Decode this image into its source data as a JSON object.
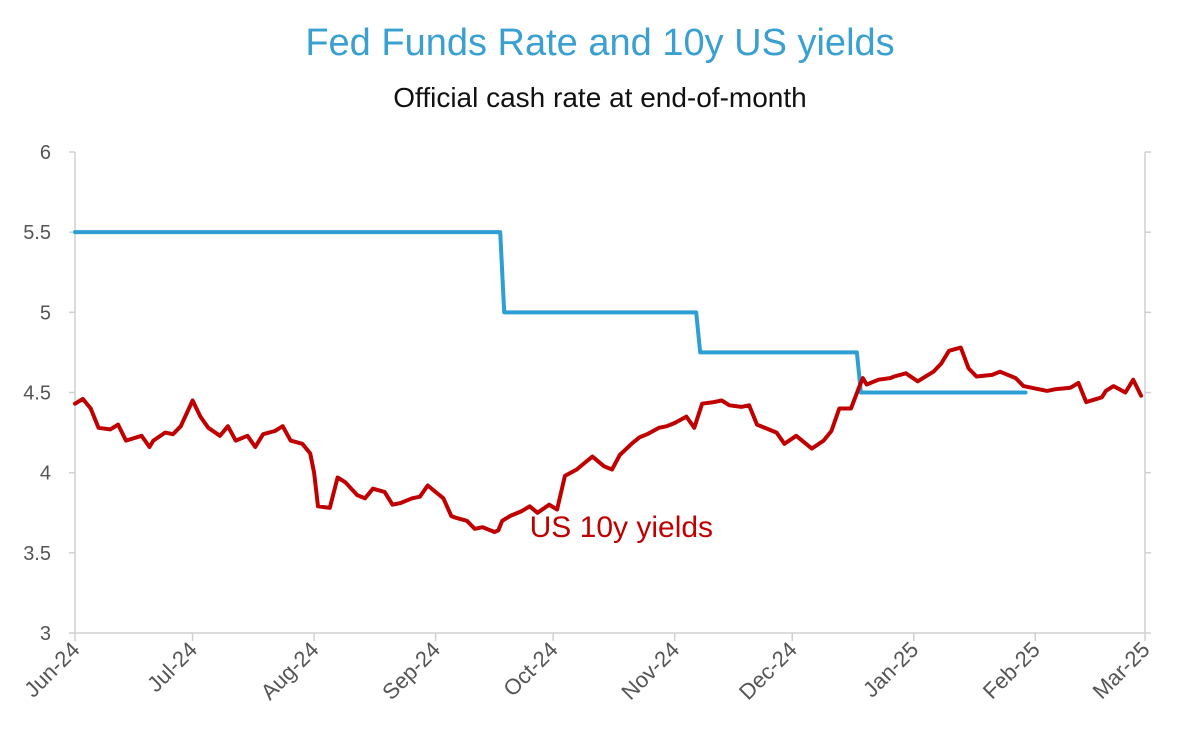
{
  "chart_data": {
    "type": "line",
    "title": "Fed Funds Rate and 10y US yields",
    "subtitle": "Official cash rate at end-of-month",
    "xlabel": "",
    "ylabel": "",
    "x_ticks": [
      "Jun-24",
      "Jul-24",
      "Aug-24",
      "Sep-24",
      "Oct-24",
      "Nov-24",
      "Dec-24",
      "Jan-25",
      "Feb-25",
      "Mar-25"
    ],
    "y_ticks": [
      "3",
      "3.5",
      "4",
      "4.5",
      "5",
      "5.5",
      "6"
    ],
    "xlim": [
      "2024-06-01",
      "2025-03-01"
    ],
    "ylim": [
      3,
      6
    ],
    "grid": false,
    "legend": "none",
    "series": [
      {
        "key": "fed",
        "color": "#2e9fd4",
        "step": true,
        "x": [
          "2024-06-01",
          "2024-09-18",
          "2024-11-07",
          "2024-12-18",
          "2025-01-29"
        ],
        "y": [
          5.5,
          5.0,
          4.75,
          4.5,
          4.5
        ]
      },
      {
        "key": "us10y",
        "color": "#c00000",
        "x": [
          "2024-06-01",
          "2024-06-03",
          "2024-06-05",
          "2024-06-07",
          "2024-06-10",
          "2024-06-12",
          "2024-06-14",
          "2024-06-18",
          "2024-06-20",
          "2024-06-21",
          "2024-06-24",
          "2024-06-26",
          "2024-06-28",
          "2024-07-01",
          "2024-07-03",
          "2024-07-05",
          "2024-07-08",
          "2024-07-10",
          "2024-07-12",
          "2024-07-15",
          "2024-07-17",
          "2024-07-19",
          "2024-07-22",
          "2024-07-24",
          "2024-07-26",
          "2024-07-29",
          "2024-07-31",
          "2024-08-01",
          "2024-08-02",
          "2024-08-05",
          "2024-08-07",
          "2024-08-09",
          "2024-08-12",
          "2024-08-14",
          "2024-08-16",
          "2024-08-19",
          "2024-08-21",
          "2024-08-23",
          "2024-08-26",
          "2024-08-28",
          "2024-08-30",
          "2024-09-03",
          "2024-09-05",
          "2024-09-06",
          "2024-09-09",
          "2024-09-11",
          "2024-09-13",
          "2024-09-16",
          "2024-09-17",
          "2024-09-18",
          "2024-09-20",
          "2024-09-23",
          "2024-09-25",
          "2024-09-27",
          "2024-09-30",
          "2024-10-02",
          "2024-10-04",
          "2024-10-07",
          "2024-10-09",
          "2024-10-11",
          "2024-10-14",
          "2024-10-16",
          "2024-10-18",
          "2024-10-21",
          "2024-10-23",
          "2024-10-25",
          "2024-10-28",
          "2024-10-30",
          "2024-11-01",
          "2024-11-04",
          "2024-11-06",
          "2024-11-08",
          "2024-11-11",
          "2024-11-13",
          "2024-11-15",
          "2024-11-18",
          "2024-11-20",
          "2024-11-22",
          "2024-11-25",
          "2024-11-27",
          "2024-11-29",
          "2024-12-02",
          "2024-12-04",
          "2024-12-06",
          "2024-12-09",
          "2024-12-11",
          "2024-12-13",
          "2024-12-16",
          "2024-12-18",
          "2024-12-19",
          "2024-12-20",
          "2024-12-23",
          "2024-12-26",
          "2024-12-27",
          "2024-12-30",
          "2025-01-02",
          "2025-01-06",
          "2025-01-08",
          "2025-01-10",
          "2025-01-13",
          "2025-01-15",
          "2025-01-17",
          "2025-01-21",
          "2025-01-23",
          "2025-01-27",
          "2025-01-29",
          "2025-01-31",
          "2025-02-04",
          "2025-02-06",
          "2025-02-10",
          "2025-02-12",
          "2025-02-14",
          "2025-02-18",
          "2025-02-19",
          "2025-02-21",
          "2025-02-24",
          "2025-02-26",
          "2025-02-28"
        ],
        "y": [
          4.43,
          4.46,
          4.4,
          4.28,
          4.27,
          4.3,
          4.2,
          4.23,
          4.16,
          4.2,
          4.25,
          4.24,
          4.29,
          4.45,
          4.35,
          4.28,
          4.23,
          4.29,
          4.2,
          4.23,
          4.16,
          4.24,
          4.26,
          4.29,
          4.2,
          4.18,
          4.12,
          4.0,
          3.79,
          3.78,
          3.97,
          3.94,
          3.86,
          3.84,
          3.9,
          3.88,
          3.8,
          3.81,
          3.84,
          3.85,
          3.92,
          3.84,
          3.73,
          3.72,
          3.7,
          3.65,
          3.66,
          3.63,
          3.64,
          3.7,
          3.73,
          3.76,
          3.79,
          3.75,
          3.8,
          3.77,
          3.98,
          4.02,
          4.06,
          4.1,
          4.04,
          4.02,
          4.11,
          4.18,
          4.22,
          4.24,
          4.28,
          4.29,
          4.31,
          4.35,
          4.28,
          4.43,
          4.44,
          4.45,
          4.42,
          4.41,
          4.42,
          4.3,
          4.27,
          4.25,
          4.18,
          4.23,
          4.19,
          4.15,
          4.2,
          4.26,
          4.4,
          4.4,
          4.53,
          4.59,
          4.55,
          4.58,
          4.59,
          4.6,
          4.62,
          4.57,
          4.63,
          4.68,
          4.76,
          4.78,
          4.65,
          4.6,
          4.61,
          4.63,
          4.59,
          4.54,
          4.53,
          4.51,
          4.52,
          4.53,
          4.56,
          4.44,
          4.47,
          4.51,
          4.54,
          4.5,
          4.58,
          4.48
        ]
      }
    ],
    "annotations": [
      {
        "text": "US 10y yields",
        "x": "2024-09-25",
        "y": 3.6,
        "color": "#c00000"
      }
    ]
  }
}
